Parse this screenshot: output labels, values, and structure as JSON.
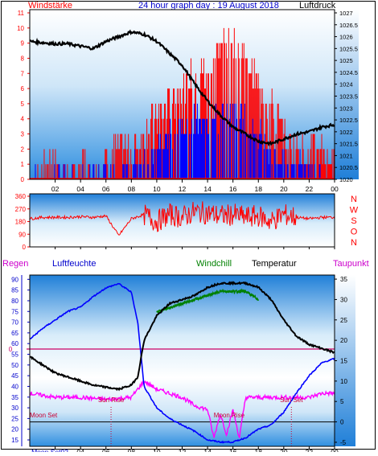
{
  "header": {
    "left_title": "Windstärke",
    "center_title": "24 hour graph day : 19 August 2018",
    "right_title": "Luftdruck"
  },
  "bottom_headers": {
    "regen": "Regen",
    "luftfeuchte": "Luftfeuchte",
    "windchill": "Windchill",
    "temperatur": "Temperatur",
    "taupunkt": "Taupunkt"
  },
  "direction_labels": [
    "N",
    "W",
    "S",
    "O",
    "N"
  ],
  "astro": {
    "moon_set": "Moon Set",
    "sun_rise": "Sun Rise",
    "moon_rise": "Moon Rise",
    "sun_set": "Sun Set",
    "sun_rise_time": 6.4,
    "sun_set_time": 20.6,
    "moon_rise_time": 15.7
  },
  "colors": {
    "title_red": "#ff0000",
    "title_blue": "#0000cc",
    "windchill": "#008000",
    "taupunkt": "#cc00cc",
    "pressure": "#000000",
    "gust": "#ff0000",
    "wind": "#0000ff",
    "humidity": "#0000ff",
    "temperature": "#000000",
    "dewpoint": "#ff00ff",
    "zero_line": "#cc0066"
  },
  "chart_data": [
    {
      "type": "line",
      "panel": "wind-pressure",
      "x_ticks": [
        "02",
        "04",
        "06",
        "08",
        "10",
        "12",
        "14",
        "16",
        "18",
        "20",
        "22",
        "00"
      ],
      "left_axis": {
        "label": "Windstärke",
        "ticks": [
          "0",
          "1",
          "2",
          "3",
          "4",
          "5",
          "6",
          "7",
          "8",
          "9",
          "10",
          "11"
        ],
        "ylim": [
          0,
          11
        ]
      },
      "right_axis": {
        "label": "Luftdruck",
        "ticks": [
          "1020",
          "1020.5",
          "1021",
          "1021.5",
          "1022",
          "1022.5",
          "1023",
          "1023.5",
          "1024",
          "1024.5",
          "1025",
          "1025.5",
          "1026",
          "1026.5",
          "1027"
        ],
        "ylim": [
          1020,
          1027
        ]
      },
      "series": [
        {
          "name": "Luftdruck",
          "x": [
            0,
            2,
            3,
            5,
            6,
            7,
            8,
            9,
            10,
            11,
            12,
            13,
            14,
            15,
            16,
            17,
            18,
            19,
            20,
            21,
            22,
            23,
            24
          ],
          "y": [
            1025.8,
            1025.7,
            1025.7,
            1025.5,
            1025.8,
            1026.0,
            1026.2,
            1026.1,
            1025.8,
            1025.3,
            1024.8,
            1024.0,
            1023.3,
            1022.7,
            1022.2,
            1021.9,
            1021.6,
            1021.5,
            1021.7,
            1021.9,
            1022.0,
            1022.2,
            1022.3
          ]
        },
        {
          "name": "Windböen",
          "x": [
            0,
            2,
            3,
            4,
            5,
            6,
            7,
            8,
            9,
            10,
            11,
            12,
            13,
            14,
            15,
            16,
            17,
            18,
            19,
            20,
            21,
            22,
            23,
            24
          ],
          "y": [
            0,
            1,
            0,
            1,
            1,
            1,
            2,
            2,
            3,
            4,
            5,
            6,
            7,
            7,
            9,
            9,
            8,
            6,
            5,
            3,
            2,
            2,
            2,
            1
          ]
        },
        {
          "name": "Windgeschwindigkeit",
          "x": [
            0,
            2,
            4,
            6,
            8,
            9,
            10,
            11,
            12,
            13,
            14,
            15,
            16,
            17,
            18,
            19,
            20,
            21,
            22,
            23,
            24
          ],
          "y": [
            0,
            0,
            0,
            0,
            1,
            1,
            2,
            3,
            3,
            4,
            4,
            4,
            5,
            4,
            3,
            2,
            1,
            1,
            1,
            0,
            0
          ]
        }
      ]
    },
    {
      "type": "line",
      "panel": "wind-direction",
      "x_ticks": [
        "02",
        "04",
        "06",
        "08",
        "10",
        "12",
        "14",
        "16",
        "18",
        "20",
        "22",
        "00"
      ],
      "axis": {
        "ticks": [
          "0",
          "90",
          "180",
          "270",
          "360"
        ],
        "ylim": [
          0,
          360
        ]
      },
      "series": [
        {
          "name": "Windrichtung",
          "x": [
            0,
            1,
            2,
            3,
            4,
            5,
            6,
            7,
            8,
            9,
            10,
            11,
            12,
            13,
            14,
            15,
            16,
            17,
            18,
            19,
            20,
            21,
            22,
            23,
            24
          ],
          "y": [
            200,
            210,
            210,
            210,
            215,
            210,
            220,
            80,
            200,
            230,
            180,
            230,
            210,
            250,
            240,
            220,
            230,
            210,
            220,
            180,
            230,
            210,
            200,
            210,
            210
          ]
        }
      ]
    },
    {
      "type": "line",
      "panel": "temperature-humidity",
      "x_ticks": [
        "02",
        "04",
        "06",
        "08",
        "10",
        "12",
        "14",
        "16",
        "18",
        "20",
        "22",
        "00"
      ],
      "left_axis": {
        "label": "Luftfeuchte",
        "ticks": [
          "15",
          "20",
          "25",
          "30",
          "35",
          "40",
          "45",
          "50",
          "55",
          "60",
          "65",
          "70",
          "75",
          "80",
          "85",
          "90"
        ],
        "ylim": [
          12,
          92
        ]
      },
      "right_axis": {
        "label": "Temperatur",
        "ticks": [
          "-5",
          "0",
          "5",
          "10",
          "15",
          "20",
          "25",
          "30",
          "35"
        ],
        "ylim": [
          -6,
          36
        ]
      },
      "regen_marker": "0",
      "series": [
        {
          "name": "Luftfeuchte",
          "x": [
            0,
            1,
            2,
            3,
            4,
            5,
            6,
            7,
            8,
            8.5,
            9,
            10,
            11,
            12,
            13,
            14,
            15,
            16,
            17,
            18,
            19,
            20,
            21,
            22,
            23,
            24
          ],
          "y": [
            62,
            67,
            71,
            75,
            77,
            82,
            86,
            88,
            84,
            70,
            40,
            30,
            25,
            22,
            19,
            15,
            14,
            14,
            16,
            20,
            22,
            28,
            37,
            45,
            51,
            53
          ]
        },
        {
          "name": "Temperatur",
          "x": [
            0,
            1,
            2,
            3,
            4,
            5,
            6,
            7,
            8,
            8.5,
            9,
            10,
            11,
            12,
            13,
            14,
            15,
            16,
            17,
            18,
            19,
            20,
            21,
            22,
            23,
            24
          ],
          "y": [
            16,
            14,
            12,
            11,
            10,
            9,
            8.5,
            8,
            9,
            11,
            20,
            26,
            29,
            30,
            31,
            33,
            34,
            34,
            34,
            33,
            30,
            25,
            21,
            19,
            18,
            17
          ]
        },
        {
          "name": "Windchill",
          "x": [
            10,
            11,
            12,
            13,
            14,
            15,
            16,
            17,
            18
          ],
          "y": [
            27,
            28,
            29,
            30,
            31,
            32,
            32,
            32,
            30
          ]
        },
        {
          "name": "Taupunkt",
          "x": [
            0,
            2,
            4,
            6,
            8,
            9,
            10,
            11,
            12,
            13,
            14,
            14.5,
            15,
            15.5,
            16,
            16.5,
            17,
            18,
            19,
            20,
            21,
            22,
            23,
            24
          ],
          "y": [
            7,
            6,
            6,
            5.5,
            6,
            10,
            8,
            7,
            6,
            4,
            3,
            -4,
            2,
            -3,
            3,
            -4,
            6,
            6,
            6,
            6,
            6,
            6,
            7,
            7
          ]
        }
      ]
    }
  ]
}
